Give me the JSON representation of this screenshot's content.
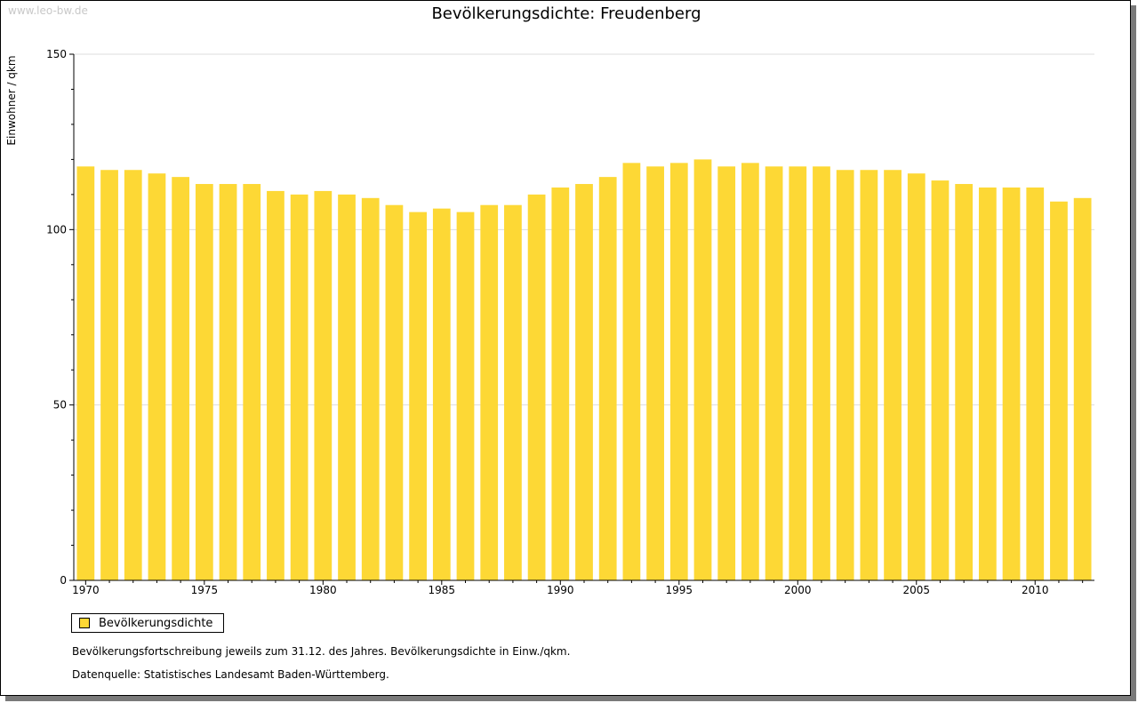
{
  "watermark": "www.leo-bw.de",
  "colors": {
    "bar": "#FDD835",
    "grid": "#dddddd",
    "axis": "#000000"
  },
  "notes": {
    "description": "Bevölkerungsfortschreibung jeweils zum 31.12. des Jahres. Bevölkerungsdichte in Einw./qkm.",
    "source": "Datenquelle: Statistisches Landesamt Baden-Württemberg."
  },
  "chart_data": {
    "type": "bar",
    "title": "Bevölkerungsdichte: Freudenberg",
    "xlabel": "",
    "ylabel": "Einwohner / qkm",
    "ylim": [
      0,
      150
    ],
    "yticks": [
      0,
      50,
      100,
      150
    ],
    "xtick_labels": [
      "1970",
      "1975",
      "1980",
      "1985",
      "1990",
      "1995",
      "2000",
      "2005",
      "2010"
    ],
    "grid": true,
    "legend_position": "bottom-left",
    "categories": [
      1970,
      1971,
      1972,
      1973,
      1974,
      1975,
      1976,
      1977,
      1978,
      1979,
      1980,
      1981,
      1982,
      1983,
      1984,
      1985,
      1986,
      1987,
      1988,
      1989,
      1990,
      1991,
      1992,
      1993,
      1994,
      1995,
      1996,
      1997,
      1998,
      1999,
      2000,
      2001,
      2002,
      2003,
      2004,
      2005,
      2006,
      2007,
      2008,
      2009,
      2010,
      2011,
      2012
    ],
    "series": [
      {
        "name": "Bevölkerungsdichte",
        "values": [
          118,
          117,
          117,
          116,
          115,
          113,
          113,
          113,
          111,
          110,
          111,
          110,
          109,
          107,
          105,
          106,
          105,
          107,
          107,
          110,
          112,
          113,
          115,
          119,
          118,
          119,
          120,
          118,
          119,
          118,
          118,
          118,
          117,
          117,
          117,
          116,
          114,
          113,
          112,
          112,
          112,
          108,
          109
        ]
      }
    ]
  }
}
